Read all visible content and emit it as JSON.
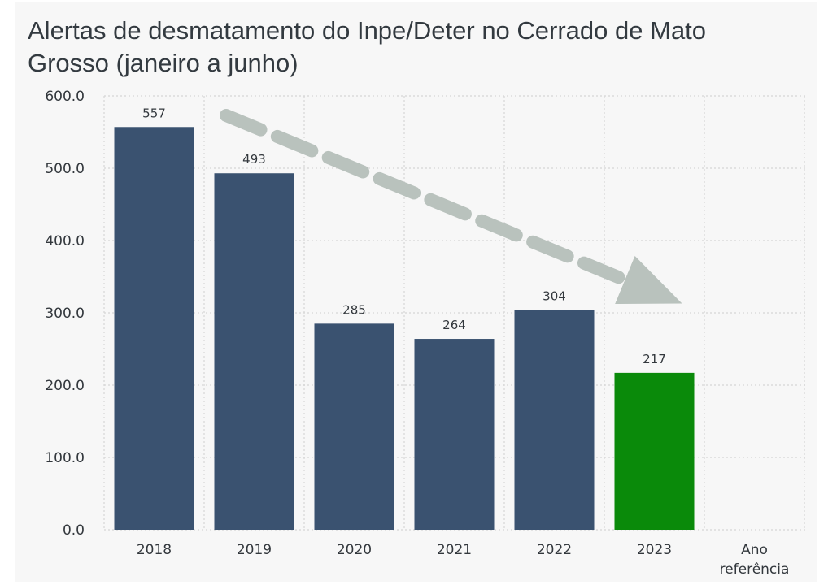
{
  "chart_data": {
    "type": "bar",
    "title": "Alertas de desmatamento do Inpe/Deter no Cerrado de Mato Grosso (janeiro a junho)",
    "xlabel": "Ano referência",
    "ylabel": "",
    "categories": [
      "2018",
      "2019",
      "2020",
      "2021",
      "2022",
      "2023"
    ],
    "values": [
      557,
      493,
      285,
      264,
      304,
      217
    ],
    "value_labels": [
      "557",
      "493",
      "285",
      "264",
      "304",
      "217"
    ],
    "y_ticks": [
      "0.0",
      "100.0",
      "200.0",
      "300.0",
      "400.0",
      "500.0",
      "600.0"
    ],
    "ylim": [
      0,
      600
    ],
    "grid": true,
    "colors": {
      "bar": "#3a5270",
      "highlight": "#0a8a0a",
      "grid": "#d6d6d6",
      "trend_arrow": "#b9c2bd",
      "background": "#f7f7f7"
    },
    "highlight_category": "2023",
    "annotation": {
      "type": "dashed-arrow",
      "meaning": "downward-trend"
    }
  }
}
